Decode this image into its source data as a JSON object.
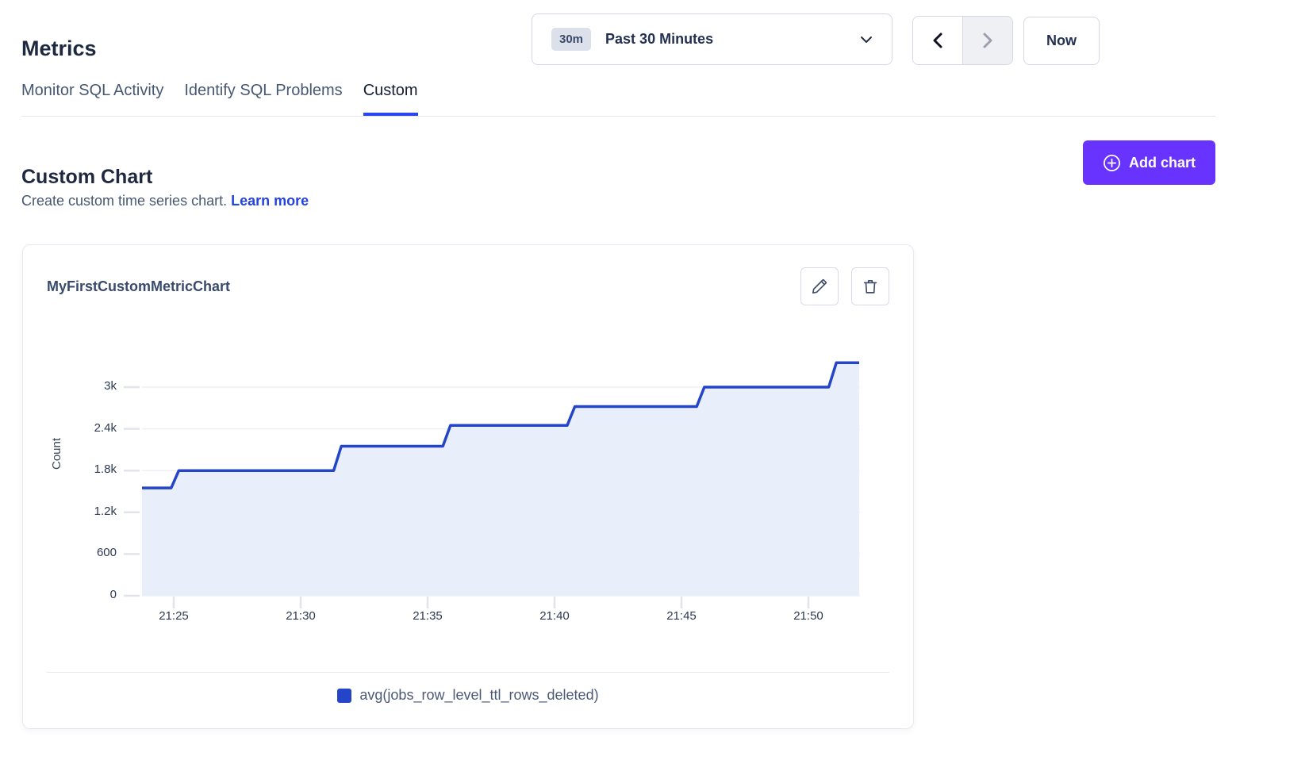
{
  "page": {
    "title": "Metrics"
  },
  "time_controls": {
    "range_badge": "30m",
    "range_label": "Past 30 Minutes",
    "now_label": "Now"
  },
  "tabs": [
    {
      "label": "Monitor SQL Activity",
      "active": false
    },
    {
      "label": "Identify SQL Problems",
      "active": false
    },
    {
      "label": "Custom",
      "active": true
    }
  ],
  "section": {
    "heading": "Custom Chart",
    "description": "Create custom time series chart.",
    "learn_more_label": "Learn more",
    "add_chart_label": "Add chart"
  },
  "chart_card": {
    "title": "MyFirstCustomMetricChart"
  },
  "chart_data": {
    "type": "area",
    "title": "MyFirstCustomMetricChart",
    "xlabel": "",
    "ylabel": "Count",
    "grid": true,
    "legend_position": "bottom",
    "x_axis_note": "time of day, minutes encoded as minutes after 21:00",
    "x_range_minutes": [
      23.75,
      52
    ],
    "ylim": [
      0,
      3650
    ],
    "x_ticks": [
      {
        "minute": 25,
        "label": "21:25"
      },
      {
        "minute": 30,
        "label": "21:30"
      },
      {
        "minute": 35,
        "label": "21:35"
      },
      {
        "minute": 40,
        "label": "21:40"
      },
      {
        "minute": 45,
        "label": "21:45"
      },
      {
        "minute": 50,
        "label": "21:50"
      }
    ],
    "y_ticks": [
      {
        "value": 0,
        "label": "0"
      },
      {
        "value": 600,
        "label": "600"
      },
      {
        "value": 1200,
        "label": "1.2k"
      },
      {
        "value": 1800,
        "label": "1.8k"
      },
      {
        "value": 2400,
        "label": "2.4k"
      },
      {
        "value": 3000,
        "label": "3k"
      }
    ],
    "series": [
      {
        "name": "avg(jobs_row_level_ttl_rows_deleted)",
        "color": "#2545c8",
        "fill": "#e9eefb",
        "step": "after",
        "step_vertices_minute_value": [
          [
            23.75,
            1550
          ],
          [
            24.9,
            1550
          ],
          [
            25.2,
            1800
          ],
          [
            31.3,
            1800
          ],
          [
            31.6,
            2150
          ],
          [
            35.6,
            2150
          ],
          [
            35.9,
            2450
          ],
          [
            40.5,
            2450
          ],
          [
            40.8,
            2720
          ],
          [
            45.6,
            2720
          ],
          [
            45.9,
            3000
          ],
          [
            50.8,
            3000
          ],
          [
            51.1,
            3350
          ],
          [
            52.0,
            3350
          ]
        ]
      }
    ]
  },
  "colors": {
    "accent_purple": "#6933ff",
    "link_blue": "#2443e4",
    "tab_underline": "#2946f0",
    "series_blue": "#2545c8",
    "series_fill": "#e9eefb",
    "gridline": "#edeff4"
  }
}
